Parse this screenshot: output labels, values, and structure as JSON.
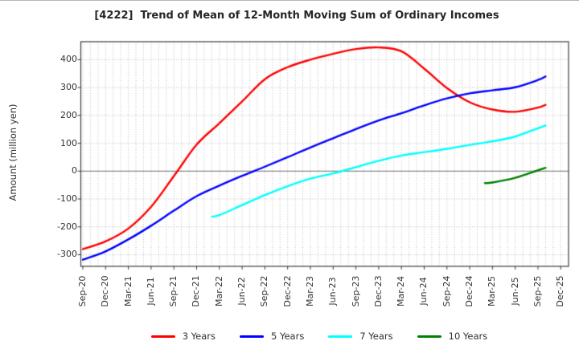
{
  "window": {
    "top_border_color": "#b4b4b4"
  },
  "chart_data": {
    "type": "line",
    "title": "[4222]  Trend of Mean of 12-Month Moving Sum of Ordinary Incomes",
    "xlabel": "",
    "ylabel": "Amount (million yen)",
    "ylim": [
      -340,
      465
    ],
    "grid": true,
    "minor_x_grid": "monthly",
    "legend_position": "bottom",
    "x_unit": "months since Sep-20 (quarterly ticks)",
    "x_tick_labels": [
      "Sep-20",
      "Dec-20",
      "Mar-21",
      "Jun-21",
      "Sep-21",
      "Dec-21",
      "Mar-22",
      "Jun-22",
      "Sep-22",
      "Dec-22",
      "Mar-23",
      "Jun-23",
      "Sep-23",
      "Dec-23",
      "Mar-24",
      "Jun-24",
      "Sep-24",
      "Dec-24",
      "Mar-25",
      "Jun-25",
      "Sep-25",
      "Dec-25"
    ],
    "y_tick_labels": [
      "400",
      "300",
      "200",
      "100",
      "0",
      "-100",
      "-200",
      "-300"
    ],
    "y_tick_values": [
      400,
      300,
      200,
      100,
      0,
      -100,
      -200,
      -300
    ],
    "zero_line_color": "#8a8a8a",
    "grid_color": "#b8b8b8",
    "frame_color": "#3c3c3c",
    "series": [
      {
        "name": "3 Years",
        "color": "#ff0000",
        "months": [
          0,
          3,
          6,
          9,
          12,
          15,
          18,
          21,
          24,
          27,
          30,
          33,
          36,
          39,
          42,
          45,
          48,
          51,
          54,
          57,
          60,
          61
        ],
        "values": [
          -280,
          -252,
          -206,
          -128,
          -18,
          95,
          172,
          250,
          330,
          373,
          400,
          421,
          438,
          444,
          430,
          368,
          298,
          247,
          221,
          213,
          228,
          238
        ]
      },
      {
        "name": "5 Years",
        "color": "#0000ff",
        "months": [
          0,
          3,
          6,
          9,
          12,
          15,
          18,
          21,
          24,
          27,
          30,
          33,
          36,
          39,
          42,
          45,
          48,
          51,
          54,
          57,
          60,
          61
        ],
        "values": [
          -318,
          -288,
          -245,
          -196,
          -142,
          -90,
          -52,
          -17,
          16,
          50,
          85,
          118,
          151,
          182,
          208,
          236,
          261,
          279,
          290,
          301,
          327,
          340
        ]
      },
      {
        "name": "7 Years",
        "color": "#00ffff",
        "months": [
          17,
          18,
          21,
          24,
          27,
          30,
          33,
          36,
          39,
          42,
          45,
          48,
          51,
          54,
          57,
          60,
          61
        ],
        "values": [
          -163,
          -158,
          -122,
          -86,
          -54,
          -27,
          -8,
          14,
          37,
          56,
          68,
          80,
          94,
          107,
          124,
          154,
          164
        ]
      },
      {
        "name": "10 Years",
        "color": "#008000",
        "months": [
          53,
          54,
          57,
          60,
          61
        ],
        "values": [
          -43,
          -41,
          -24,
          3,
          12
        ]
      }
    ]
  }
}
